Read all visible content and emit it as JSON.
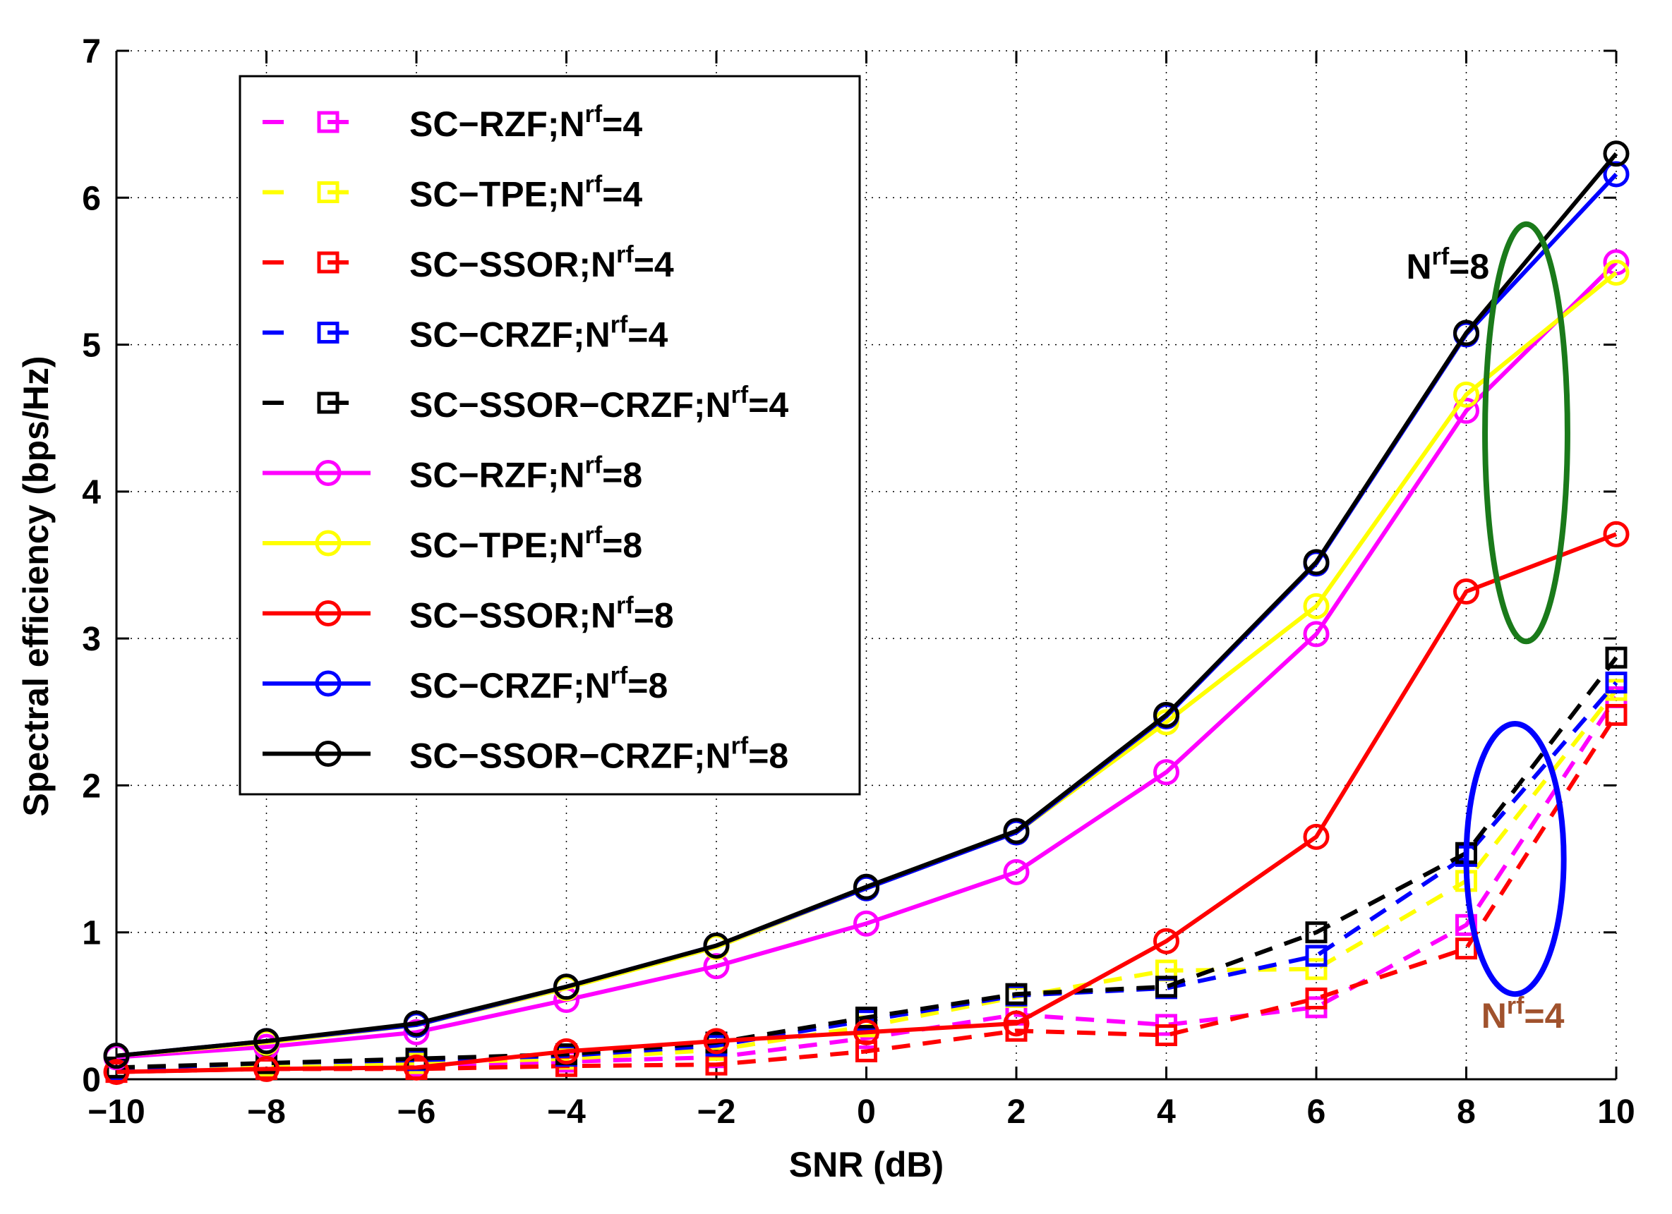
{
  "chart_data": {
    "type": "line",
    "title": "",
    "xlabel": "SNR (dB)",
    "ylabel": "Spectral efficiency (bps/Hz)",
    "xlim": [
      -10,
      10
    ],
    "ylim": [
      0,
      7
    ],
    "grid": true,
    "x": [
      -10,
      -8,
      -6,
      -4,
      -2,
      0,
      2,
      4,
      6,
      8,
      10
    ],
    "xticks": [
      "−10",
      "−8",
      "−6",
      "−4",
      "−2",
      "0",
      "2",
      "4",
      "6",
      "8",
      "10"
    ],
    "yticks": [
      "0",
      "1",
      "2",
      "3",
      "4",
      "5",
      "6",
      "7"
    ],
    "legend_position": "top-left",
    "series": [
      {
        "name": "SC−RZF;N",
        "sup": "rf",
        "suffix": "=4",
        "color": "#ff00ff",
        "style": "dashed",
        "marker": "square",
        "values": [
          0.05,
          0.08,
          0.09,
          0.12,
          0.15,
          0.28,
          0.44,
          0.37,
          0.49,
          1.05,
          2.6
        ]
      },
      {
        "name": "SC−TPE;N",
        "sup": "rf",
        "suffix": "=4",
        "color": "#ffff00",
        "style": "dashed",
        "marker": "square",
        "values": [
          0.06,
          0.09,
          0.11,
          0.14,
          0.2,
          0.36,
          0.56,
          0.74,
          0.75,
          1.35,
          2.65
        ]
      },
      {
        "name": "SC−SSOR;N",
        "sup": "rf",
        "suffix": "=4",
        "color": "#ff0000",
        "style": "dashed",
        "marker": "square",
        "values": [
          0.05,
          0.07,
          0.07,
          0.09,
          0.1,
          0.19,
          0.33,
          0.3,
          0.55,
          0.89,
          2.48
        ]
      },
      {
        "name": "SC−CRZF;N",
        "sup": "rf",
        "suffix": "=4",
        "color": "#0000ff",
        "style": "dashed",
        "marker": "square",
        "values": [
          0.07,
          0.11,
          0.13,
          0.16,
          0.23,
          0.4,
          0.57,
          0.62,
          0.84,
          1.52,
          2.7
        ]
      },
      {
        "name": "SC−SSOR−CRZF;N",
        "sup": "rf",
        "suffix": "=4",
        "color": "#000000",
        "style": "dashed",
        "marker": "square",
        "values": [
          0.08,
          0.11,
          0.14,
          0.17,
          0.25,
          0.42,
          0.58,
          0.63,
          1.0,
          1.54,
          2.87
        ]
      },
      {
        "name": "SC−RZF;N",
        "sup": "rf",
        "suffix": "=8",
        "color": "#ff00ff",
        "style": "solid",
        "marker": "circle",
        "values": [
          0.15,
          0.22,
          0.32,
          0.54,
          0.77,
          1.06,
          1.41,
          2.09,
          3.03,
          4.55,
          5.56
        ]
      },
      {
        "name": "SC−TPE;N",
        "sup": "rf",
        "suffix": "=8",
        "color": "#ffff00",
        "style": "solid",
        "marker": "circle",
        "values": [
          0.16,
          0.25,
          0.37,
          0.62,
          0.9,
          1.3,
          1.68,
          2.43,
          3.22,
          4.66,
          5.49
        ]
      },
      {
        "name": "SC−SSOR;N",
        "sup": "rf",
        "suffix": "=8",
        "color": "#ff0000",
        "style": "solid",
        "marker": "circle",
        "values": [
          0.05,
          0.07,
          0.08,
          0.19,
          0.26,
          0.32,
          0.38,
          0.94,
          1.65,
          3.32,
          3.71
        ]
      },
      {
        "name": "SC−CRZF;N",
        "sup": "rf",
        "suffix": "=8",
        "color": "#0000ff",
        "style": "solid",
        "marker": "circle",
        "values": [
          0.16,
          0.26,
          0.37,
          0.63,
          0.91,
          1.3,
          1.68,
          2.47,
          3.51,
          5.07,
          6.16
        ]
      },
      {
        "name": "SC−SSOR−CRZF;N",
        "sup": "rf",
        "suffix": "=8",
        "color": "#000000",
        "style": "solid",
        "marker": "circle",
        "values": [
          0.16,
          0.26,
          0.38,
          0.63,
          0.91,
          1.31,
          1.69,
          2.48,
          3.52,
          5.08,
          6.3
        ]
      }
    ],
    "annotations": [
      {
        "name": "annotation-nrf8",
        "text": "N",
        "sup": "rf",
        "suffix": "=8",
        "x": 7.2,
        "y": 5.45,
        "color": "#000000"
      },
      {
        "name": "annotation-nrf4",
        "text": "N",
        "sup": "rf",
        "suffix": "=4",
        "x": 8.2,
        "y": 0.35,
        "color": "#a0522d"
      }
    ],
    "ellipses": [
      {
        "name": "green-ellipse-nrf8",
        "cx": 8.8,
        "cy": 4.4,
        "rx": 0.55,
        "ry": 1.42,
        "color": "#1a7a1a"
      },
      {
        "name": "blue-ellipse-nrf4",
        "cx": 8.65,
        "cy": 1.5,
        "rx": 0.65,
        "ry": 0.92,
        "color": "#0000ff"
      }
    ]
  }
}
